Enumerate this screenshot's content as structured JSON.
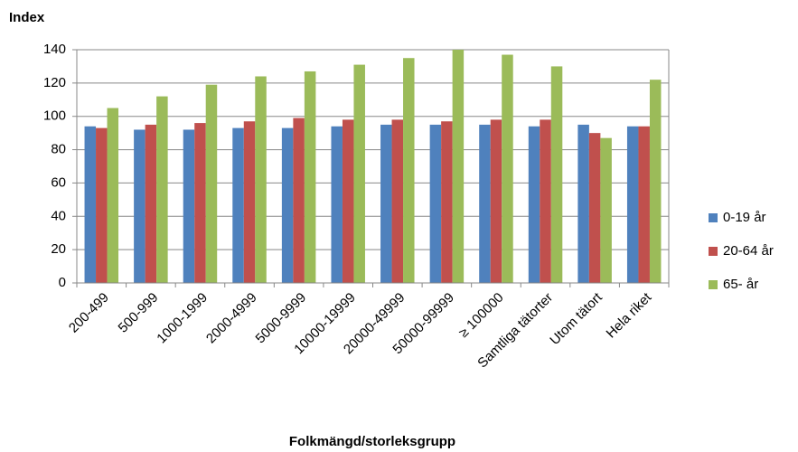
{
  "chart_data": {
    "type": "bar",
    "y_axis_label": "Index",
    "x_axis_label": "Folkmängd/storleksgrupp",
    "categories": [
      "200-499",
      "500-999",
      "1000-1999",
      "2000-4999",
      "5000-9999",
      "10000-19999",
      "20000-49999",
      "50000-99999",
      "≥ 100000",
      "Samtliga tätorter",
      "Utom tätort",
      "Hela riket"
    ],
    "series": [
      {
        "name": "0-19 år",
        "color": "#4f81bd",
        "values": [
          94,
          92,
          92,
          93,
          93,
          94,
          95,
          95,
          95,
          94,
          95,
          94
        ]
      },
      {
        "name": "20-64 år",
        "color": "#c0504d",
        "values": [
          93,
          95,
          96,
          97,
          99,
          98,
          98,
          97,
          98,
          98,
          90,
          94
        ]
      },
      {
        "name": "65- år",
        "color": "#9bbb59",
        "values": [
          105,
          112,
          119,
          124,
          127,
          131,
          135,
          140,
          137,
          130,
          87,
          122
        ]
      }
    ],
    "ylim": [
      0,
      140
    ],
    "yticks": [
      0,
      20,
      40,
      60,
      80,
      100,
      120,
      140
    ],
    "grid": true,
    "legend": "right"
  }
}
